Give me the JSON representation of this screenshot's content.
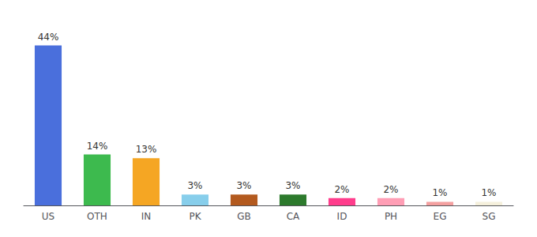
{
  "chart_data": {
    "type": "bar",
    "categories": [
      "US",
      "OTH",
      "IN",
      "PK",
      "GB",
      "CA",
      "ID",
      "PH",
      "EG",
      "SG"
    ],
    "values": [
      44,
      14,
      13,
      3,
      3,
      3,
      2,
      2,
      1,
      1
    ],
    "value_labels": [
      "44%",
      "14%",
      "13%",
      "3%",
      "3%",
      "3%",
      "2%",
      "2%",
      "1%",
      "1%"
    ],
    "colors": [
      "#4a6fdc",
      "#3dba4e",
      "#f5a623",
      "#87ceeb",
      "#b35a1f",
      "#2d7a2d",
      "#ff3d8c",
      "#ff9eb5",
      "#f4a0a0",
      "#f5f0dc"
    ],
    "ylim": [
      0,
      50
    ],
    "grid": false,
    "data_labels": true,
    "tick_labels": "x"
  }
}
